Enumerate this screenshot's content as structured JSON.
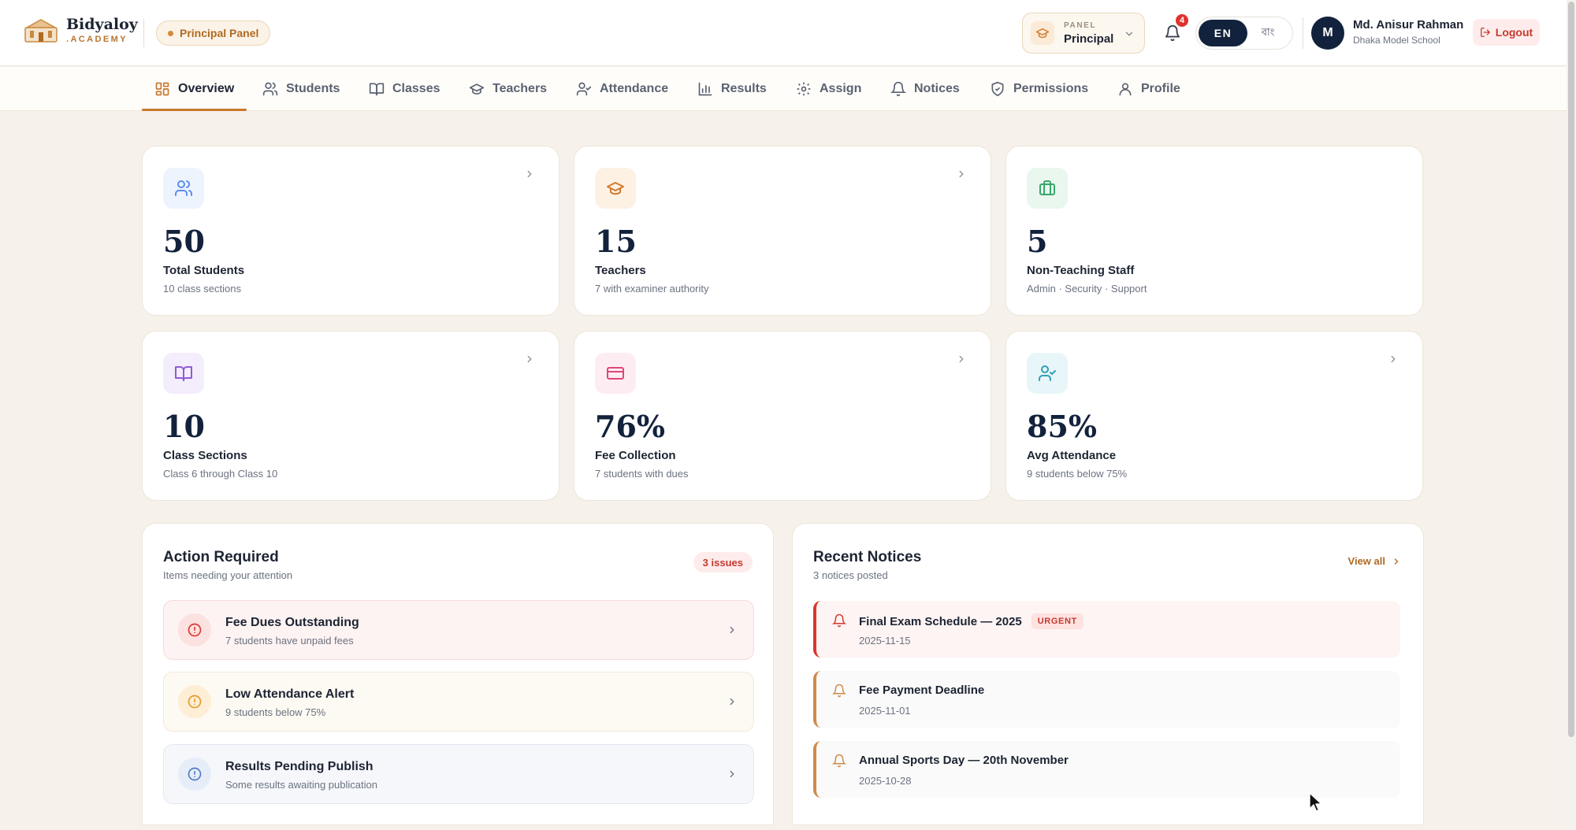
{
  "brand": {
    "name": "Bidyaloy",
    "sub": ".ACADEMY",
    "panel_badge": "Principal Panel"
  },
  "header": {
    "role_select": {
      "label": "PANEL",
      "value": "Principal"
    },
    "notifications_count": "4",
    "language": {
      "active": "EN",
      "inactive": "বাং"
    },
    "user": {
      "initial": "M",
      "name": "Md. Anisur Rahman",
      "school": "Dhaka Model School"
    },
    "logout_label": "Logout"
  },
  "nav": {
    "items": [
      {
        "label": "Overview",
        "icon": "grid-icon",
        "active": true
      },
      {
        "label": "Students",
        "icon": "users-icon"
      },
      {
        "label": "Classes",
        "icon": "book-icon"
      },
      {
        "label": "Teachers",
        "icon": "graduation-cap-icon"
      },
      {
        "label": "Attendance",
        "icon": "user-check-icon"
      },
      {
        "label": "Results",
        "icon": "bar-chart-icon"
      },
      {
        "label": "Assign",
        "icon": "gear-icon"
      },
      {
        "label": "Notices",
        "icon": "bell-icon"
      },
      {
        "label": "Permissions",
        "icon": "shield-check-icon"
      },
      {
        "label": "Profile",
        "icon": "user-icon"
      }
    ]
  },
  "stats": [
    {
      "value": "50",
      "label": "Total Students",
      "sub": "10 class sections",
      "icon": "users-icon",
      "color": "#5b8def",
      "bg": "#eef4fe"
    },
    {
      "value": "15",
      "label": "Teachers",
      "sub": "7 with examiner authority",
      "icon": "graduation-cap-icon",
      "color": "#d27a2a",
      "bg": "#fdf1e4"
    },
    {
      "value": "5",
      "label": "Non-Teaching Staff",
      "sub": "Admin · Security · Support",
      "icon": "briefcase-icon",
      "color": "#3aa66d",
      "bg": "#e9f7ef"
    },
    {
      "value": "10",
      "label": "Class Sections",
      "sub": "Class 6 through Class 10",
      "icon": "book-open-icon",
      "color": "#8e5bd8",
      "bg": "#f4edfc"
    },
    {
      "value": "76%",
      "label": "Fee Collection",
      "sub": "7 students with dues",
      "icon": "credit-card-icon",
      "color": "#e0457b",
      "bg": "#fdedf3"
    },
    {
      "value": "85%",
      "label": "Avg Attendance",
      "sub": "9 students below 75%",
      "icon": "user-check-icon",
      "color": "#2f9fb8",
      "bg": "#e8f6f9"
    }
  ],
  "action_required": {
    "title": "Action Required",
    "subtitle": "Items needing your attention",
    "badge": "3 issues",
    "items": [
      {
        "title": "Fee Dues Outstanding",
        "sub": "7 students have unpaid fees",
        "color": "#d8372f",
        "bg": "#fdf3f2",
        "border": "#f6dcd9",
        "icon_bg": "#fbe1df"
      },
      {
        "title": "Low Attendance Alert",
        "sub": "9 students below 75%",
        "color": "#e39a2d",
        "bg": "#fdf9f3",
        "border": "#f4e9d6",
        "icon_bg": "#fdeed5"
      },
      {
        "title": "Results Pending Publish",
        "sub": "Some results awaiting publication",
        "color": "#4f79c6",
        "bg": "#f5f7fb",
        "border": "#e3e8f1",
        "icon_bg": "#e6edf8"
      }
    ]
  },
  "recent_notices": {
    "title": "Recent Notices",
    "subtitle": "3 notices posted",
    "view_all": "View all",
    "items": [
      {
        "title": "Final Exam Schedule — 2025",
        "date": "2025-11-15",
        "badge": "URGENT",
        "urgent": true
      },
      {
        "title": "Fee Payment Deadline",
        "date": "2025-11-01"
      },
      {
        "title": "Annual Sports Day — 20th November",
        "date": "2025-10-28"
      }
    ]
  }
}
